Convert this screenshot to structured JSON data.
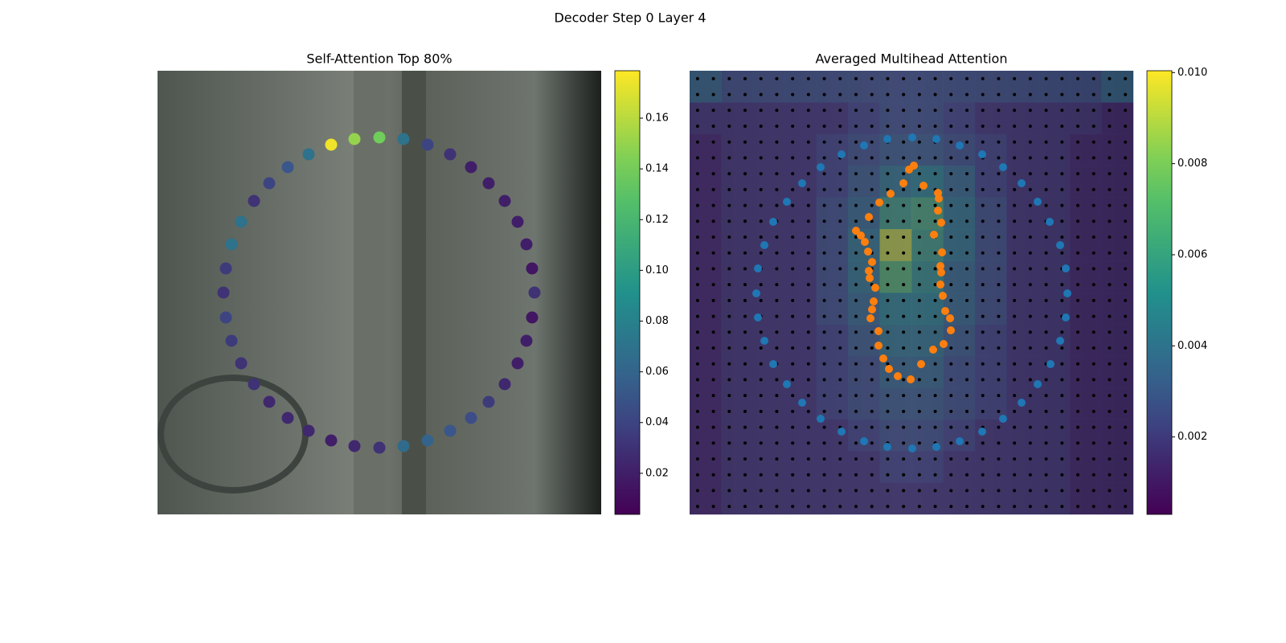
{
  "title": "Decoder Step 0 Layer 4",
  "chart_data": [
    {
      "type": "scatter",
      "title": "Self-Attention Top 80%",
      "colormap": "viridis",
      "xlim": [
        0,
        552
      ],
      "ylim": [
        552,
        0
      ],
      "x": [
        276,
        306,
        336,
        364,
        390,
        412,
        432,
        448,
        459,
        466,
        469,
        466,
        459,
        448,
        432,
        412,
        390,
        364,
        336,
        306,
        276,
        245,
        216,
        188,
        162,
        139,
        120,
        104,
        92,
        85,
        82,
        85,
        92,
        104,
        120,
        139,
        162,
        188,
        216,
        245
      ],
      "y": [
        83,
        85,
        92,
        104,
        120,
        140,
        162,
        188,
        216,
        246,
        276,
        307,
        336,
        364,
        390,
        412,
        432,
        448,
        460,
        467,
        469,
        467,
        460,
        448,
        432,
        412,
        390,
        364,
        336,
        307,
        276,
        246,
        216,
        188,
        162,
        140,
        120,
        104,
        92,
        85
      ],
      "values": [
        0.14,
        0.07,
        0.04,
        0.03,
        0.02,
        0.02,
        0.02,
        0.02,
        0.02,
        0.015,
        0.03,
        0.015,
        0.02,
        0.02,
        0.025,
        0.035,
        0.045,
        0.05,
        0.06,
        0.065,
        0.03,
        0.025,
        0.02,
        0.025,
        0.025,
        0.025,
        0.03,
        0.03,
        0.035,
        0.04,
        0.03,
        0.035,
        0.07,
        0.07,
        0.03,
        0.04,
        0.05,
        0.07,
        0.175,
        0.15
      ],
      "clim": [
        0.0038,
        0.1787
      ],
      "cticks": [
        0.02,
        0.04,
        0.06,
        0.08,
        {
          "value": 0.1,
          "label": "0.10"
        },
        0.12,
        0.14,
        0.16
      ]
    },
    {
      "type": "heatmap",
      "title": "Averaged Multihead Attention",
      "colormap": "viridis",
      "xlim": [
        0,
        552
      ],
      "ylim": [
        552,
        0
      ],
      "matrix": [
        [
          0.004,
          0.003,
          0.003,
          0.003,
          0.003,
          0.003,
          0.003,
          0.003,
          0.003,
          0.003,
          0.003,
          0.003,
          0.003,
          0.004
        ],
        [
          0.002,
          0.002,
          0.002,
          0.002,
          0.002,
          0.0025,
          0.003,
          0.003,
          0.0025,
          0.002,
          0.002,
          0.002,
          0.002,
          0.0015
        ],
        [
          0.0015,
          0.002,
          0.002,
          0.002,
          0.0025,
          0.003,
          0.0035,
          0.0035,
          0.003,
          0.0025,
          0.002,
          0.002,
          0.0015,
          0.0015
        ],
        [
          0.0015,
          0.002,
          0.002,
          0.002,
          0.0025,
          0.0035,
          0.0045,
          0.005,
          0.004,
          0.0025,
          0.002,
          0.002,
          0.0015,
          0.0015
        ],
        [
          0.0015,
          0.002,
          0.002,
          0.002,
          0.003,
          0.004,
          0.006,
          0.0065,
          0.0045,
          0.003,
          0.002,
          0.002,
          0.0015,
          0.0015
        ],
        [
          0.0015,
          0.002,
          0.002,
          0.002,
          0.003,
          0.0045,
          0.009,
          0.006,
          0.0045,
          0.003,
          0.002,
          0.002,
          0.0015,
          0.0015
        ],
        [
          0.0015,
          0.002,
          0.002,
          0.002,
          0.003,
          0.0045,
          0.007,
          0.0055,
          0.004,
          0.003,
          0.002,
          0.002,
          0.0015,
          0.0015
        ],
        [
          0.0015,
          0.002,
          0.002,
          0.002,
          0.003,
          0.004,
          0.005,
          0.005,
          0.004,
          0.003,
          0.002,
          0.002,
          0.0015,
          0.0015
        ],
        [
          0.0015,
          0.002,
          0.002,
          0.002,
          0.0025,
          0.0035,
          0.0045,
          0.0045,
          0.0035,
          0.0025,
          0.002,
          0.002,
          0.0015,
          0.0015
        ],
        [
          0.0015,
          0.002,
          0.002,
          0.002,
          0.0025,
          0.003,
          0.004,
          0.004,
          0.003,
          0.0025,
          0.002,
          0.002,
          0.0015,
          0.0015
        ],
        [
          0.0015,
          0.002,
          0.002,
          0.002,
          0.0025,
          0.003,
          0.0035,
          0.0035,
          0.003,
          0.0025,
          0.002,
          0.002,
          0.0015,
          0.0015
        ],
        [
          0.0015,
          0.002,
          0.002,
          0.002,
          0.002,
          0.0025,
          0.003,
          0.003,
          0.0025,
          0.002,
          0.002,
          0.002,
          0.0015,
          0.0015
        ],
        [
          0.0015,
          0.002,
          0.002,
          0.002,
          0.002,
          0.002,
          0.0025,
          0.0025,
          0.002,
          0.002,
          0.002,
          0.002,
          0.0015,
          0.0015
        ],
        [
          0.0015,
          0.002,
          0.002,
          0.002,
          0.002,
          0.002,
          0.002,
          0.002,
          0.002,
          0.002,
          0.002,
          0.002,
          0.0015,
          0.0015
        ]
      ],
      "clim": [
        0.0003,
        0.01004
      ],
      "cticks": [
        0.002,
        0.004,
        0.006,
        0.008,
        {
          "value": 0.01,
          "label": "0.010"
        }
      ],
      "series": [
        {
          "color": "#1f77b4",
          "x": [
            277,
            307,
            336,
            364,
            390,
            413,
            433,
            448,
            461,
            468,
            470,
            468,
            461,
            449,
            433,
            413,
            390,
            364,
            336,
            307,
            277,
            246,
            217,
            189,
            163,
            140,
            121,
            104,
            93,
            85,
            83,
            85,
            93,
            104,
            121,
            140,
            163,
            189,
            217,
            246
          ],
          "y": [
            83,
            85,
            93,
            104,
            120,
            140,
            163,
            188,
            217,
            246,
            277,
            307,
            336,
            365,
            390,
            413,
            433,
            449,
            461,
            468,
            470,
            468,
            461,
            449,
            433,
            413,
            390,
            365,
            336,
            307,
            277,
            246,
            217,
            188,
            163,
            140,
            120,
            104,
            93,
            85
          ]
        },
        {
          "color": "#ff7f0e",
          "x": [
            279,
            273,
            291,
            266,
            250,
            236,
            223,
            207,
            213,
            218,
            222,
            227,
            223,
            224,
            231,
            229,
            227,
            225,
            235,
            235,
            241,
            248,
            259,
            275,
            288,
            303,
            316,
            325,
            324,
            318,
            315,
            312,
            313,
            312,
            314,
            304,
            313,
            309,
            310,
            309
          ],
          "y": [
            118,
            123,
            143,
            140,
            153,
            164,
            182,
            199,
            205,
            213,
            225,
            238,
            249,
            258,
            270,
            287,
            297,
            308,
            324,
            342,
            358,
            371,
            380,
            384,
            365,
            347,
            340,
            323,
            308,
            299,
            280,
            266,
            251,
            243,
            226,
            204,
            189,
            174,
            159,
            152
          ]
        }
      ]
    }
  ]
}
